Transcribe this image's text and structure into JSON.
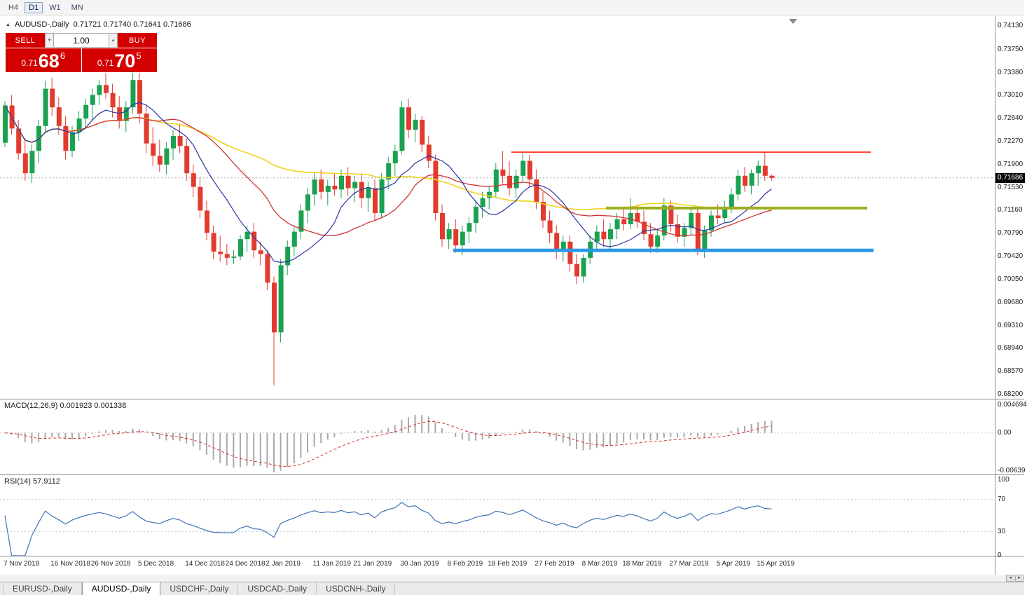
{
  "toolbar": {
    "timeframes": [
      {
        "label": "H4",
        "active": false
      },
      {
        "label": "D1",
        "active": true
      },
      {
        "label": "W1",
        "active": false
      },
      {
        "label": "MN",
        "active": false
      }
    ]
  },
  "chart": {
    "marker": "▲",
    "title": "AUDUSD-,Daily",
    "ohlc": "0.71721 0.71740 0.71641 0.71686",
    "trade_panel": {
      "sell_label": "SELL",
      "buy_label": "BUY",
      "volume": "1.00",
      "spinner_down": "▼",
      "spinner_up": "▲",
      "sell_price": {
        "prefix": "0.71",
        "digits": "68",
        "pip": "6"
      },
      "buy_price": {
        "prefix": "0.71",
        "digits": "70",
        "pip": "5"
      }
    },
    "price_axis": [
      "0.74130",
      "0.73750",
      "0.73380",
      "0.73010",
      "0.72640",
      "0.72270",
      "0.71900",
      "0.71530",
      "0.71160",
      "0.70790",
      "0.70420",
      "0.70050",
      "0.69680",
      "0.69310",
      "0.68940",
      "0.68570",
      "0.68200"
    ],
    "current_price_label": "0.71686"
  },
  "macd": {
    "header": "MACD(12,26,9) 0.001923 0.001338",
    "axis": [
      "0.004694",
      "0.00",
      "-0.00639"
    ]
  },
  "rsi": {
    "header": "RSI(14) 57.9112",
    "axis": [
      "100",
      "70",
      "30",
      "0"
    ]
  },
  "scrollbar": {
    "left_arrow": "◄",
    "right_arrow": "►"
  },
  "tabs": [
    {
      "label": "EURUSD-,Daily",
      "active": false
    },
    {
      "label": "AUDUSD-,Daily",
      "active": true
    },
    {
      "label": "USDCHF-,Daily",
      "active": false
    },
    {
      "label": "USDCAD-,Daily",
      "active": false
    },
    {
      "label": "USDCNH-,Daily",
      "active": false
    }
  ],
  "chart_data": {
    "type": "candlestick",
    "symbol": "AUDUSD",
    "timeframe": "Daily",
    "last_ohlc": {
      "open": 0.71721,
      "high": 0.7174,
      "low": 0.71641,
      "close": 0.71686
    },
    "current_price": 0.71686,
    "y_range": [
      0.682,
      0.7413
    ],
    "colors": {
      "up": "#1aa251",
      "down": "#e23b2e"
    },
    "candles": [
      [
        0.7225,
        0.7292,
        0.7218,
        0.7285
      ],
      [
        0.7285,
        0.7302,
        0.7238,
        0.7248
      ],
      [
        0.7248,
        0.7262,
        0.7198,
        0.7208
      ],
      [
        0.7208,
        0.7232,
        0.7164,
        0.7176
      ],
      [
        0.7176,
        0.7222,
        0.716,
        0.7212
      ],
      [
        0.7212,
        0.7262,
        0.7192,
        0.7252
      ],
      [
        0.7252,
        0.7325,
        0.7242,
        0.7312
      ],
      [
        0.7312,
        0.733,
        0.7268,
        0.7282
      ],
      [
        0.7282,
        0.7298,
        0.7238,
        0.7252
      ],
      [
        0.7252,
        0.7268,
        0.7198,
        0.7212
      ],
      [
        0.7212,
        0.7252,
        0.7202,
        0.7242
      ],
      [
        0.7242,
        0.7276,
        0.7228,
        0.7264
      ],
      [
        0.7264,
        0.7296,
        0.7248,
        0.7286
      ],
      [
        0.7286,
        0.7312,
        0.7262,
        0.7302
      ],
      [
        0.7302,
        0.7326,
        0.7286,
        0.7318
      ],
      [
        0.7318,
        0.7337,
        0.7296,
        0.7305
      ],
      [
        0.7305,
        0.732,
        0.7266,
        0.7282
      ],
      [
        0.7282,
        0.73,
        0.7248,
        0.726
      ],
      [
        0.726,
        0.7292,
        0.7242,
        0.7282
      ],
      [
        0.7282,
        0.7337,
        0.7272,
        0.7326
      ],
      [
        0.7326,
        0.7337,
        0.7256,
        0.7272
      ],
      [
        0.7272,
        0.7286,
        0.7208,
        0.7224
      ],
      [
        0.7224,
        0.725,
        0.7188,
        0.7204
      ],
      [
        0.7204,
        0.723,
        0.7178,
        0.719
      ],
      [
        0.719,
        0.7226,
        0.7174,
        0.7216
      ],
      [
        0.7216,
        0.7246,
        0.7198,
        0.7236
      ],
      [
        0.7236,
        0.7256,
        0.7208,
        0.722
      ],
      [
        0.722,
        0.7232,
        0.7164,
        0.7176
      ],
      [
        0.7176,
        0.719,
        0.7138,
        0.7154
      ],
      [
        0.7154,
        0.717,
        0.7104,
        0.7116
      ],
      [
        0.7116,
        0.7132,
        0.7068,
        0.708
      ],
      [
        0.708,
        0.7092,
        0.7038,
        0.705
      ],
      [
        0.705,
        0.7076,
        0.7034,
        0.7046
      ],
      [
        0.7046,
        0.7062,
        0.7028,
        0.704
      ],
      [
        0.704,
        0.7052,
        0.703,
        0.7042
      ],
      [
        0.7042,
        0.7076,
        0.7036,
        0.707
      ],
      [
        0.707,
        0.7092,
        0.705,
        0.7082
      ],
      [
        0.7082,
        0.7096,
        0.704,
        0.7052
      ],
      [
        0.7052,
        0.7066,
        0.7028,
        0.7046
      ],
      [
        0.7046,
        0.7052,
        0.6988,
        0.7
      ],
      [
        0.7,
        0.701,
        0.6835,
        0.692
      ],
      [
        0.692,
        0.7038,
        0.6904,
        0.7028
      ],
      [
        0.7028,
        0.7068,
        0.7012,
        0.7058
      ],
      [
        0.7058,
        0.7092,
        0.7042,
        0.7082
      ],
      [
        0.7082,
        0.7126,
        0.707,
        0.7116
      ],
      [
        0.7116,
        0.7152,
        0.7096,
        0.7142
      ],
      [
        0.7142,
        0.7176,
        0.7124,
        0.7166
      ],
      [
        0.7166,
        0.7182,
        0.7134,
        0.7146
      ],
      [
        0.7146,
        0.7166,
        0.7124,
        0.7156
      ],
      [
        0.7156,
        0.7176,
        0.714,
        0.715
      ],
      [
        0.715,
        0.7182,
        0.7136,
        0.7172
      ],
      [
        0.7172,
        0.7186,
        0.714,
        0.7152
      ],
      [
        0.7152,
        0.7172,
        0.713,
        0.7162
      ],
      [
        0.7162,
        0.7176,
        0.712,
        0.7136
      ],
      [
        0.7136,
        0.7162,
        0.7114,
        0.7152
      ],
      [
        0.7152,
        0.7166,
        0.71,
        0.7112
      ],
      [
        0.7112,
        0.7176,
        0.7104,
        0.7166
      ],
      [
        0.7166,
        0.7202,
        0.715,
        0.7192
      ],
      [
        0.7192,
        0.7222,
        0.7172,
        0.7212
      ],
      [
        0.7212,
        0.7292,
        0.7206,
        0.7282
      ],
      [
        0.7282,
        0.7296,
        0.7232,
        0.7246
      ],
      [
        0.7246,
        0.7272,
        0.7226,
        0.7262
      ],
      [
        0.7262,
        0.7268,
        0.721,
        0.7222
      ],
      [
        0.7222,
        0.7236,
        0.7184,
        0.7196
      ],
      [
        0.7196,
        0.7206,
        0.71,
        0.7112
      ],
      [
        0.7112,
        0.7126,
        0.7058,
        0.707
      ],
      [
        0.707,
        0.7096,
        0.7054,
        0.7086
      ],
      [
        0.7086,
        0.7102,
        0.7048,
        0.706
      ],
      [
        0.706,
        0.7092,
        0.7044,
        0.7082
      ],
      [
        0.7082,
        0.7106,
        0.7064,
        0.7096
      ],
      [
        0.7096,
        0.7132,
        0.708,
        0.7122
      ],
      [
        0.7122,
        0.7146,
        0.7104,
        0.7136
      ],
      [
        0.7136,
        0.7156,
        0.7118,
        0.7146
      ],
      [
        0.7146,
        0.7192,
        0.7136,
        0.7182
      ],
      [
        0.7182,
        0.7212,
        0.716,
        0.7172
      ],
      [
        0.7172,
        0.7196,
        0.714,
        0.7152
      ],
      [
        0.7152,
        0.7182,
        0.7136,
        0.7172
      ],
      [
        0.7172,
        0.7212,
        0.7162,
        0.7196
      ],
      [
        0.7196,
        0.7206,
        0.7154,
        0.7166
      ],
      [
        0.7166,
        0.7182,
        0.7118,
        0.713
      ],
      [
        0.713,
        0.7146,
        0.7088,
        0.71
      ],
      [
        0.71,
        0.7116,
        0.7064,
        0.708
      ],
      [
        0.708,
        0.7092,
        0.7038,
        0.705
      ],
      [
        0.705,
        0.7076,
        0.7034,
        0.7066
      ],
      [
        0.7066,
        0.7076,
        0.7018,
        0.703
      ],
      [
        0.703,
        0.7046,
        0.6998,
        0.701
      ],
      [
        0.701,
        0.7046,
        0.7,
        0.704
      ],
      [
        0.704,
        0.7076,
        0.703,
        0.7066
      ],
      [
        0.7066,
        0.7092,
        0.705,
        0.7082
      ],
      [
        0.7082,
        0.7102,
        0.7058,
        0.707
      ],
      [
        0.707,
        0.7096,
        0.7054,
        0.7086
      ],
      [
        0.7086,
        0.7112,
        0.707,
        0.7102
      ],
      [
        0.7102,
        0.7122,
        0.7084,
        0.7094
      ],
      [
        0.7094,
        0.7136,
        0.7086,
        0.7112
      ],
      [
        0.7112,
        0.7126,
        0.7088,
        0.7098
      ],
      [
        0.7098,
        0.7116,
        0.7068,
        0.7078
      ],
      [
        0.7078,
        0.7096,
        0.7048,
        0.7058
      ],
      [
        0.7058,
        0.7086,
        0.7048,
        0.7076
      ],
      [
        0.7076,
        0.7136,
        0.7068,
        0.7124
      ],
      [
        0.7124,
        0.7132,
        0.7082,
        0.7094
      ],
      [
        0.7094,
        0.711,
        0.7064,
        0.7074
      ],
      [
        0.7074,
        0.7096,
        0.7058,
        0.7088
      ],
      [
        0.7088,
        0.7122,
        0.7078,
        0.7112
      ],
      [
        0.7112,
        0.7118,
        0.7044,
        0.7052
      ],
      [
        0.7052,
        0.7092,
        0.704,
        0.7084
      ],
      [
        0.7084,
        0.7116,
        0.7074,
        0.7108
      ],
      [
        0.7108,
        0.7126,
        0.7094,
        0.7104
      ],
      [
        0.7104,
        0.7132,
        0.7096,
        0.7122
      ],
      [
        0.7122,
        0.7152,
        0.7112,
        0.7142
      ],
      [
        0.7142,
        0.7182,
        0.7132,
        0.7172
      ],
      [
        0.7172,
        0.7186,
        0.7146,
        0.7156
      ],
      [
        0.7156,
        0.7182,
        0.7142,
        0.7176
      ],
      [
        0.7176,
        0.7196,
        0.7156,
        0.7188
      ],
      [
        0.7188,
        0.721,
        0.7164,
        0.7172
      ],
      [
        0.71721,
        0.7174,
        0.71641,
        0.71686
      ]
    ],
    "x_ticks": [
      {
        "label": "7 Nov 2018",
        "i": 0
      },
      {
        "label": "16 Nov 2018",
        "i": 7
      },
      {
        "label": "26 Nov 2018",
        "i": 13
      },
      {
        "label": "5 Dec 2018",
        "i": 20
      },
      {
        "label": "14 Dec 2018",
        "i": 27
      },
      {
        "label": "24 Dec 2018",
        "i": 33
      },
      {
        "label": "2 Jan 2019",
        "i": 39
      },
      {
        "label": "11 Jan 2019",
        "i": 46
      },
      {
        "label": "21 Jan 2019",
        "i": 52
      },
      {
        "label": "30 Jan 2019",
        "i": 59
      },
      {
        "label": "8 Feb 2019",
        "i": 66
      },
      {
        "label": "18 Feb 2019",
        "i": 72
      },
      {
        "label": "27 Feb 2019",
        "i": 79
      },
      {
        "label": "8 Mar 2019",
        "i": 86
      },
      {
        "label": "18 Mar 2019",
        "i": 92
      },
      {
        "label": "27 Mar 2019",
        "i": 99
      },
      {
        "label": "5 Apr 2019",
        "i": 106
      },
      {
        "label": "15 Apr 2019",
        "i": 112
      }
    ],
    "hlines": [
      {
        "name": "resistance-line",
        "price": 0.721,
        "color": "#ff3b30",
        "width": 2,
        "x1": 730,
        "x2": 1243
      },
      {
        "name": "pivot-line",
        "price": 0.712,
        "color": "#9fae1f",
        "width": 4,
        "x1": 865,
        "x2": 1238
      },
      {
        "name": "support-line",
        "price": 0.7052,
        "color": "#2b99e8",
        "width": 5,
        "x1": 647,
        "x2": 1247
      }
    ],
    "moving_averages": [
      {
        "type": "sma",
        "period": 55,
        "color": "#f0d21c",
        "width": 1.6
      },
      {
        "type": "sma",
        "period": 21,
        "color": "#cf3434",
        "width": 1.3
      },
      {
        "type": "sma",
        "period": 10,
        "color": "#2a35a0",
        "width": 1.2
      }
    ],
    "indicators": {
      "macd": {
        "params": [
          12,
          26,
          9
        ],
        "value": 0.001923,
        "signal": 0.001338,
        "range": [
          -0.00639,
          0.004694
        ]
      },
      "rsi": {
        "period": 14,
        "value": 57.9112,
        "levels": [
          70,
          30
        ]
      }
    }
  }
}
